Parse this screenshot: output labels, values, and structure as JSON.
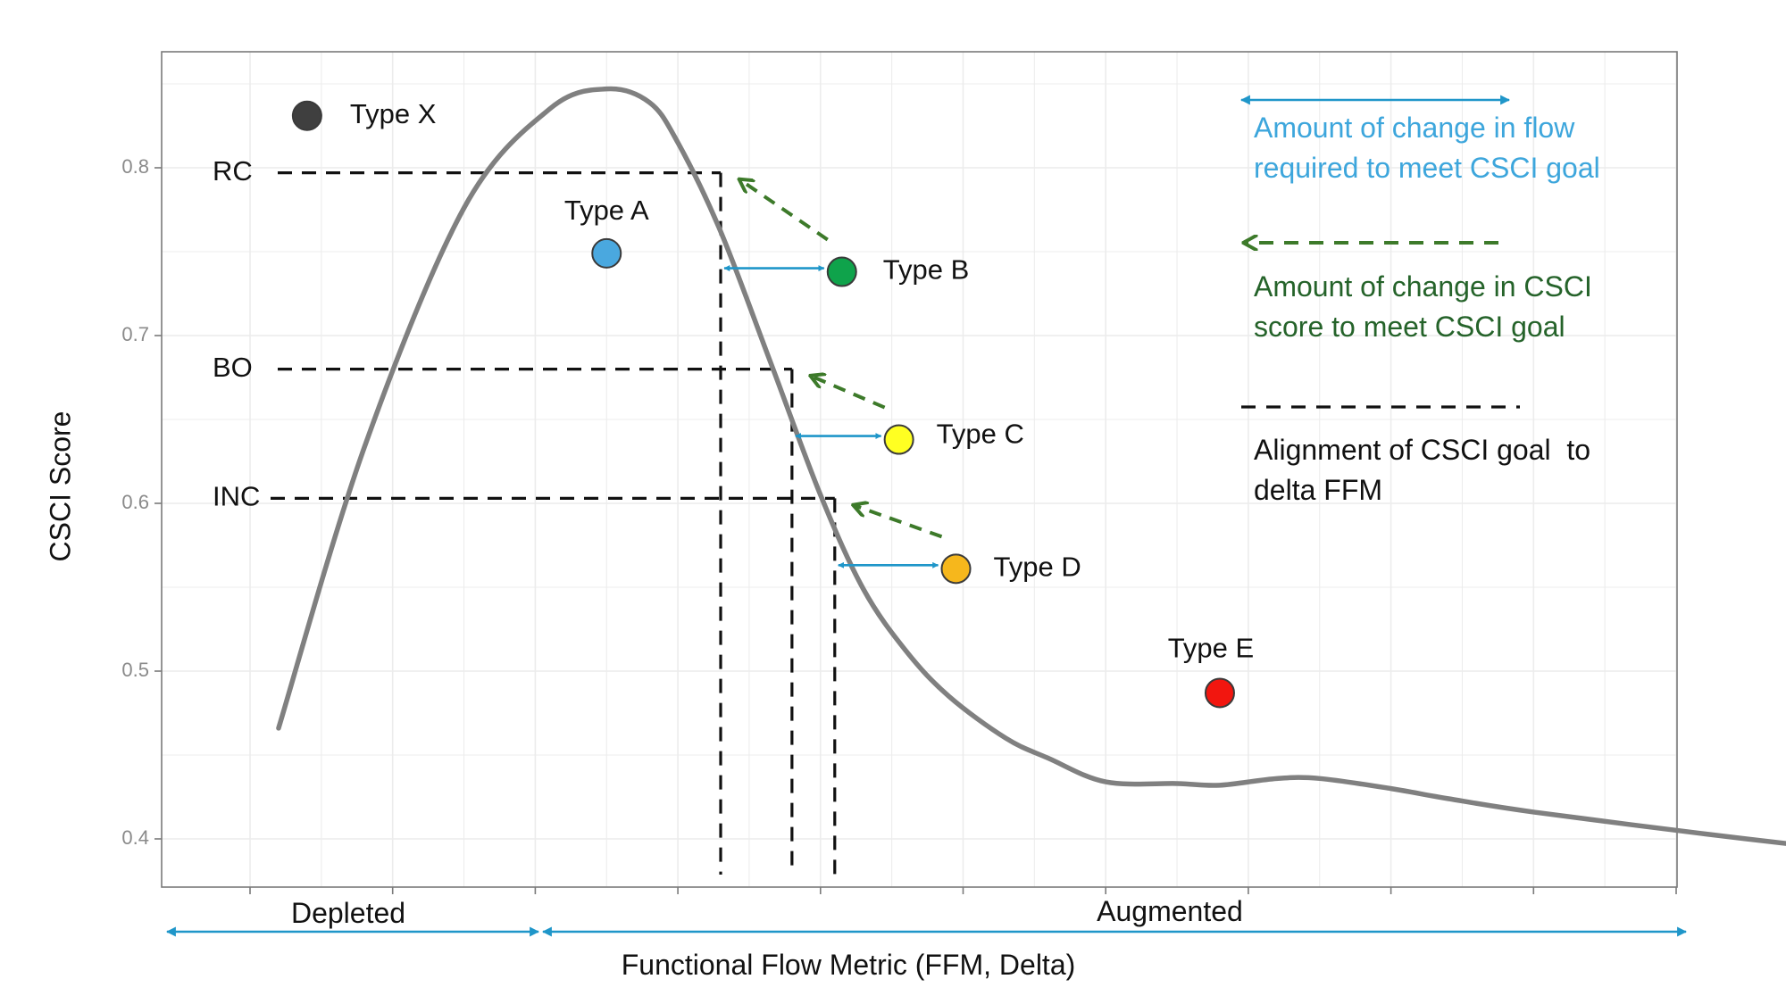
{
  "chart_data": {
    "type": "line",
    "title": "",
    "xlabel": "Functional Flow Metric (FFM, Delta)",
    "ylabel": "CSCI Score",
    "ylim": [
      0.371,
      0.869
    ],
    "y_ticks": [
      0.4,
      0.5,
      0.6,
      0.7,
      0.8
    ],
    "y_tick_labels": [
      "0.4",
      "0.5",
      "0.6",
      "0.7",
      "0.8"
    ],
    "x_tick_count": 11,
    "grid": true,
    "series": [
      {
        "x": [
          0.2,
          0.8,
          1.5,
          2.1,
          2.5,
          2.8,
          3.0,
          3.3,
          3.65,
          4.0,
          4.3,
          4.6,
          4.9,
          5.3,
          5.6,
          6.0,
          6.5,
          6.8,
          7.2,
          7.5,
          8.0,
          8.4,
          9.0,
          10.2,
          11.2
        ],
        "y": [
          0.466,
          0.633,
          0.776,
          0.835,
          0.847,
          0.839,
          0.815,
          0.762,
          0.684,
          0.605,
          0.549,
          0.512,
          0.485,
          0.46,
          0.448,
          0.434,
          0.433,
          0.432,
          0.436,
          0.436,
          0.43,
          0.424,
          0.416,
          0.403,
          0.393
        ]
      }
    ],
    "reference_lines": [
      {
        "label": "RC",
        "y": 0.797,
        "x_intersect": 3.3
      },
      {
        "label": "BO",
        "y": 0.68,
        "x_intersect": 3.8
      },
      {
        "label": "INC",
        "y": 0.603,
        "x_intersect": 4.1
      }
    ],
    "points": [
      {
        "label": "Type X",
        "x": 0.4,
        "y": 0.831,
        "color": "#3f3f3f"
      },
      {
        "label": "Type A",
        "x": 2.5,
        "y": 0.749,
        "color": "#4aa8df"
      },
      {
        "label": "Type B",
        "x": 4.15,
        "y": 0.738,
        "color": "#0fa34b"
      },
      {
        "label": "Type C",
        "x": 4.55,
        "y": 0.638,
        "color": "#ffff22"
      },
      {
        "label": "Type D",
        "x": 4.95,
        "y": 0.561,
        "color": "#f6b71c"
      },
      {
        "label": "Type E",
        "x": 6.8,
        "y": 0.487,
        "color": "#f2160f"
      }
    ],
    "regions": [
      {
        "label": "Depleted"
      },
      {
        "label": "Augmented"
      }
    ],
    "legend": {
      "placement": "right",
      "entries": [
        {
          "style": "double-arrow",
          "color": "#1f96c9",
          "text_color": "#3da6dc",
          "lines": [
            "Amount of change in flow",
            "required to meet CSCI goal"
          ]
        },
        {
          "style": "dashed-arrow",
          "color": "#3d7a2a",
          "text_color": "#25632a",
          "lines": [
            "Amount of change in CSCI",
            "score to meet CSCI goal"
          ]
        },
        {
          "style": "dashed-line",
          "color": "#111111",
          "text_color": "#111111",
          "lines": [
            "Alignment of CSCI goal  to",
            "delta FFM"
          ]
        }
      ]
    },
    "colors": {
      "curve": "#808080",
      "flow_arrow": "#1f96c9",
      "score_arrow": "#3d7a2a",
      "dashed": "#111111",
      "grid": "#ececec",
      "panel_border": "#7a7a7a"
    }
  }
}
